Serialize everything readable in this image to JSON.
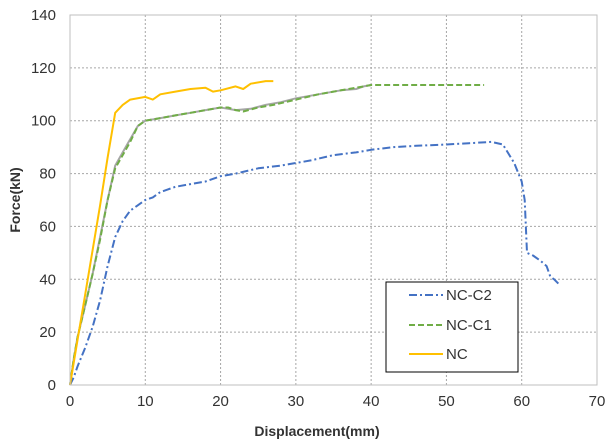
{
  "chart_data": {
    "type": "line",
    "xlabel": "Displacement(mm)",
    "ylabel": "Force(kN)",
    "xlim": [
      0,
      70
    ],
    "ylim": [
      0,
      140
    ],
    "x_ticks": [
      0,
      10,
      20,
      30,
      40,
      50,
      60,
      70
    ],
    "y_ticks": [
      0,
      20,
      40,
      60,
      80,
      100,
      120,
      140
    ],
    "grid": true,
    "legend_position": "bottom-right",
    "series": [
      {
        "name": "NC-C2",
        "color": "#4472C4",
        "dash": "dash-dot",
        "points": [
          [
            0,
            0
          ],
          [
            0.5,
            3
          ],
          [
            1,
            7
          ],
          [
            2,
            14
          ],
          [
            3,
            22
          ],
          [
            4,
            32
          ],
          [
            5,
            45
          ],
          [
            6,
            56
          ],
          [
            7,
            62
          ],
          [
            8,
            66
          ],
          [
            9,
            68
          ],
          [
            10,
            70
          ],
          [
            11,
            71
          ],
          [
            12,
            73
          ],
          [
            13,
            74
          ],
          [
            14,
            75
          ],
          [
            16,
            76
          ],
          [
            18,
            77
          ],
          [
            20,
            79
          ],
          [
            22,
            80
          ],
          [
            25,
            82
          ],
          [
            28,
            83
          ],
          [
            30,
            84
          ],
          [
            32,
            85
          ],
          [
            35,
            87
          ],
          [
            38,
            88
          ],
          [
            40,
            89
          ],
          [
            43,
            90
          ],
          [
            46,
            90.5
          ],
          [
            50,
            91
          ],
          [
            53,
            91.5
          ],
          [
            56,
            92
          ],
          [
            57.5,
            91
          ],
          [
            59,
            84
          ],
          [
            60,
            77
          ],
          [
            60.4,
            70
          ],
          [
            60.7,
            50
          ],
          [
            61.5,
            49
          ],
          [
            62.5,
            47
          ],
          [
            63.3,
            45
          ],
          [
            63.8,
            41
          ],
          [
            64.3,
            40
          ],
          [
            65,
            38
          ]
        ]
      },
      {
        "name": "NC-C1",
        "color": "#70AD47",
        "dash": "dashed",
        "points": [
          [
            0,
            0
          ],
          [
            0.5,
            10
          ],
          [
            1,
            18
          ],
          [
            2,
            30
          ],
          [
            3,
            42
          ],
          [
            4,
            55
          ],
          [
            5,
            70
          ],
          [
            6,
            82
          ],
          [
            7,
            87
          ],
          [
            8,
            92
          ],
          [
            9,
            98
          ],
          [
            10,
            100
          ],
          [
            12,
            101
          ],
          [
            14,
            102
          ],
          [
            16,
            103
          ],
          [
            18,
            104
          ],
          [
            20,
            105
          ],
          [
            21,
            105
          ],
          [
            22,
            104
          ],
          [
            23,
            103.5
          ],
          [
            25,
            105
          ],
          [
            27,
            106
          ],
          [
            30,
            108
          ],
          [
            33,
            110
          ],
          [
            35,
            111
          ],
          [
            37,
            112
          ],
          [
            38,
            112.5
          ],
          [
            39,
            113
          ],
          [
            40,
            113.5
          ],
          [
            42,
            113.5
          ],
          [
            45,
            113.5
          ],
          [
            48,
            113.5
          ],
          [
            51,
            113.5
          ],
          [
            54,
            113.5
          ],
          [
            55,
            113.5
          ]
        ]
      },
      {
        "name": "NC",
        "color": "#FFC000",
        "dash": "solid",
        "points": [
          [
            0,
            0
          ],
          [
            1,
            17
          ],
          [
            2,
            34
          ],
          [
            3,
            51
          ],
          [
            4,
            68
          ],
          [
            5,
            86
          ],
          [
            6,
            103
          ],
          [
            7,
            106
          ],
          [
            8,
            108
          ],
          [
            10,
            109
          ],
          [
            11,
            108
          ],
          [
            12,
            110
          ],
          [
            14,
            111
          ],
          [
            16,
            112
          ],
          [
            18,
            112.5
          ],
          [
            19,
            111
          ],
          [
            20,
            111.5
          ],
          [
            22,
            113
          ],
          [
            23,
            112
          ],
          [
            24,
            114
          ],
          [
            26,
            115
          ],
          [
            27,
            115
          ]
        ]
      },
      {
        "name": "",
        "color": "#A6A6A6",
        "dash": "solid",
        "points": [
          [
            0,
            0
          ],
          [
            0.5,
            10
          ],
          [
            1,
            18
          ],
          [
            2,
            30
          ],
          [
            3,
            42
          ],
          [
            4,
            56
          ],
          [
            5,
            70
          ],
          [
            6,
            83
          ],
          [
            7,
            88
          ],
          [
            8,
            93
          ],
          [
            9,
            98
          ],
          [
            10,
            100
          ],
          [
            12,
            101
          ],
          [
            14,
            102
          ],
          [
            16,
            103
          ],
          [
            18,
            104
          ],
          [
            20,
            105
          ],
          [
            21,
            104.5
          ],
          [
            22,
            104
          ],
          [
            24,
            104.5
          ],
          [
            26,
            106
          ],
          [
            28,
            107
          ],
          [
            30,
            108.5
          ],
          [
            33,
            110
          ],
          [
            36,
            111.5
          ],
          [
            38,
            112
          ],
          [
            39,
            113
          ],
          [
            40,
            113.5
          ]
        ]
      }
    ]
  }
}
